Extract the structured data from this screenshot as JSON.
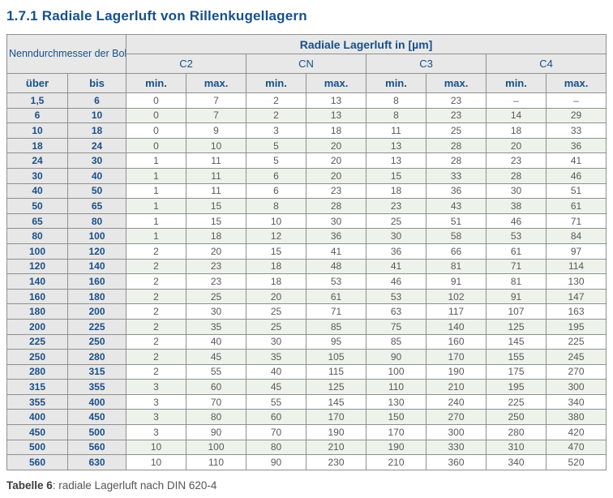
{
  "page": {
    "title": "1.7.1 Radiale Lagerluft von Rillenkugellagern",
    "caption_label": "Tabelle 6",
    "caption_text": ": radiale Lagerluft nach DIN 620-4"
  },
  "colors": {
    "heading_navy": "#17508a",
    "cell_text_gray": "#595959",
    "header_bg": "#e8e8e8",
    "bore_col_bg": "#e7e7e7",
    "alt_row_green": "#edf3ea",
    "border_gray": "#8f8f8f"
  },
  "table": {
    "header": {
      "bore": "Nenndurchmesser der Bohrung d [mm]",
      "clearance": "Radiale Lagerluft in [µm]",
      "groups": [
        "C2",
        "CN",
        "C3",
        "C4"
      ],
      "over": "über",
      "to": "bis",
      "min": "min.",
      "max": "max."
    },
    "rows": [
      {
        "over": "1,5",
        "to": "6",
        "values": [
          "0",
          "7",
          "2",
          "13",
          "8",
          "23",
          "–",
          "–"
        ]
      },
      {
        "over": "6",
        "to": "10",
        "values": [
          "0",
          "7",
          "2",
          "13",
          "8",
          "23",
          "14",
          "29"
        ]
      },
      {
        "over": "10",
        "to": "18",
        "values": [
          "0",
          "9",
          "3",
          "18",
          "11",
          "25",
          "18",
          "33"
        ]
      },
      {
        "over": "18",
        "to": "24",
        "values": [
          "0",
          "10",
          "5",
          "20",
          "13",
          "28",
          "20",
          "36"
        ]
      },
      {
        "over": "24",
        "to": "30",
        "values": [
          "1",
          "11",
          "5",
          "20",
          "13",
          "28",
          "23",
          "41"
        ]
      },
      {
        "over": "30",
        "to": "40",
        "values": [
          "1",
          "11",
          "6",
          "20",
          "15",
          "33",
          "28",
          "46"
        ]
      },
      {
        "over": "40",
        "to": "50",
        "values": [
          "1",
          "11",
          "6",
          "23",
          "18",
          "36",
          "30",
          "51"
        ]
      },
      {
        "over": "50",
        "to": "65",
        "values": [
          "1",
          "15",
          "8",
          "28",
          "23",
          "43",
          "38",
          "61"
        ]
      },
      {
        "over": "65",
        "to": "80",
        "values": [
          "1",
          "15",
          "10",
          "30",
          "25",
          "51",
          "46",
          "71"
        ]
      },
      {
        "over": "80",
        "to": "100",
        "values": [
          "1",
          "18",
          "12",
          "36",
          "30",
          "58",
          "53",
          "84"
        ]
      },
      {
        "over": "100",
        "to": "120",
        "values": [
          "2",
          "20",
          "15",
          "41",
          "36",
          "66",
          "61",
          "97"
        ]
      },
      {
        "over": "120",
        "to": "140",
        "values": [
          "2",
          "23",
          "18",
          "48",
          "41",
          "81",
          "71",
          "114"
        ]
      },
      {
        "over": "140",
        "to": "160",
        "values": [
          "2",
          "23",
          "18",
          "53",
          "46",
          "91",
          "81",
          "130"
        ]
      },
      {
        "over": "160",
        "to": "180",
        "values": [
          "2",
          "25",
          "20",
          "61",
          "53",
          "102",
          "91",
          "147"
        ]
      },
      {
        "over": "180",
        "to": "200",
        "values": [
          "2",
          "30",
          "25",
          "71",
          "63",
          "117",
          "107",
          "163"
        ]
      },
      {
        "over": "200",
        "to": "225",
        "values": [
          "2",
          "35",
          "25",
          "85",
          "75",
          "140",
          "125",
          "195"
        ]
      },
      {
        "over": "225",
        "to": "250",
        "values": [
          "2",
          "40",
          "30",
          "95",
          "85",
          "160",
          "145",
          "225"
        ]
      },
      {
        "over": "250",
        "to": "280",
        "values": [
          "2",
          "45",
          "35",
          "105",
          "90",
          "170",
          "155",
          "245"
        ]
      },
      {
        "over": "280",
        "to": "315",
        "values": [
          "2",
          "55",
          "40",
          "115",
          "100",
          "190",
          "175",
          "270"
        ]
      },
      {
        "over": "315",
        "to": "355",
        "values": [
          "3",
          "60",
          "45",
          "125",
          "110",
          "210",
          "195",
          "300"
        ]
      },
      {
        "over": "355",
        "to": "400",
        "values": [
          "3",
          "70",
          "55",
          "145",
          "130",
          "240",
          "225",
          "340"
        ]
      },
      {
        "over": "400",
        "to": "450",
        "values": [
          "3",
          "80",
          "60",
          "170",
          "150",
          "270",
          "250",
          "380"
        ]
      },
      {
        "over": "450",
        "to": "500",
        "values": [
          "3",
          "90",
          "70",
          "190",
          "170",
          "300",
          "280",
          "420"
        ]
      },
      {
        "over": "500",
        "to": "560",
        "values": [
          "10",
          "100",
          "80",
          "210",
          "190",
          "330",
          "310",
          "470"
        ]
      },
      {
        "over": "560",
        "to": "630",
        "values": [
          "10",
          "110",
          "90",
          "230",
          "210",
          "360",
          "340",
          "520"
        ]
      }
    ]
  }
}
